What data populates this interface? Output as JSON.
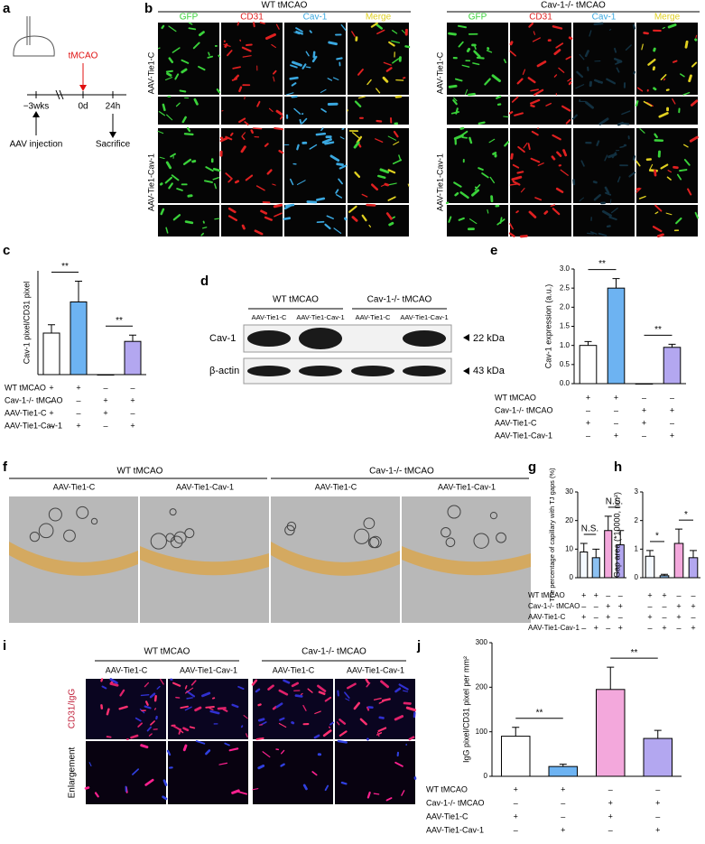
{
  "panel_labels": [
    "a",
    "b",
    "c",
    "d",
    "e",
    "f",
    "g",
    "h",
    "i",
    "j"
  ],
  "panel_a": {
    "treatment": "tMCAO",
    "timepoints": [
      "−3wks",
      "0d",
      "24h"
    ],
    "events": [
      "AAV injection",
      "Sacrifice"
    ]
  },
  "panel_b": {
    "groups": [
      "WT tMCAO",
      "Cav-1-/- tMCAO"
    ],
    "channels": [
      "GFP",
      "CD31",
      "Cav-1",
      "Merge"
    ],
    "rows": [
      "AAV-Tie1-C",
      "AAV-Tie1-Cav-1"
    ]
  },
  "panel_d": {
    "groups": [
      "WT tMCAO",
      "Cav-1-/- tMCAO"
    ],
    "lanes": [
      "AAV-Tie1-C",
      "AAV-Tie1-Cav-1"
    ],
    "bands": [
      {
        "name": "Cav-1",
        "size": "22 kDa"
      },
      {
        "name": "β-actin",
        "size": "43 kDa"
      }
    ]
  },
  "panel_f": {
    "groups": [
      "WT tMCAO",
      "Cav-1-/- tMCAO"
    ],
    "lanes": [
      "AAV-Tie1-C",
      "AAV-Tie1-Cav-1"
    ]
  },
  "panel_i": {
    "groups": [
      "WT tMCAO",
      "Cav-1-/- tMCAO"
    ],
    "lanes": [
      "AAV-Tie1-C",
      "AAV-Tie1-Cav-1"
    ],
    "stain": "CD31/IgG",
    "row": "Enlargement"
  },
  "chart_data": [
    {
      "type": "bar",
      "ylabel": "Cav-1 pixel/CD31 pixel",
      "values": [
        1.0,
        1.75,
        0.0,
        0.8
      ],
      "errors": [
        0.2,
        0.5,
        0.0,
        0.15
      ],
      "colors": [
        "#ffffff",
        "#6db3f2",
        "#ffffff",
        "#b3a7f0"
      ],
      "ylim": [
        0,
        2.5
      ],
      "significance": [
        "**",
        "**"
      ],
      "conditions": [
        {
          "label": "WT tMCAO",
          "signs": [
            "+",
            "+",
            "–",
            "–"
          ]
        },
        {
          "label": "Cav-1-/- tMCAO",
          "signs": [
            "–",
            "–",
            "+",
            "+"
          ]
        },
        {
          "label": "AAV-Tie1-C",
          "signs": [
            "+",
            "–",
            "+",
            "–"
          ]
        },
        {
          "label": "AAV-Tie1-Cav-1",
          "signs": [
            "–",
            "+",
            "–",
            "+"
          ]
        }
      ]
    },
    {
      "type": "bar",
      "ylabel": "Cav-1 expression (a.u.)",
      "values": [
        1.0,
        2.5,
        0.0,
        0.95
      ],
      "errors": [
        0.1,
        0.25,
        0.0,
        0.08
      ],
      "colors": [
        "#ffffff",
        "#6db3f2",
        "#ffffff",
        "#b3a7f0"
      ],
      "ylim": [
        0,
        3
      ],
      "yticks": [
        {
          "value": 0,
          "label": "0.0"
        },
        {
          "value": 0.5,
          "label": "0.5"
        },
        {
          "value": 1,
          "label": "1.0"
        },
        {
          "value": 1.5,
          "label": "1.5"
        },
        {
          "value": 2,
          "label": "2.0"
        },
        {
          "value": 2.5,
          "label": "2.5"
        },
        {
          "value": 3,
          "label": "3.0"
        }
      ],
      "significance": [
        "**",
        "**"
      ],
      "conditions": [
        {
          "label": "WT tMCAO",
          "signs": [
            "+",
            "+",
            "–",
            "–"
          ]
        },
        {
          "label": "Cav-1-/- tMCAO",
          "signs": [
            "–",
            "–",
            "+",
            "+"
          ]
        },
        {
          "label": "AAV-Tie1-C",
          "signs": [
            "+",
            "–",
            "+",
            "–"
          ]
        },
        {
          "label": "AAV-Tie1-Cav-1",
          "signs": [
            "–",
            "+",
            "–",
            "+"
          ]
        }
      ]
    },
    {
      "type": "bar",
      "ylabel": "The percentage of capillary with TJ gaps (%)",
      "values": [
        9,
        7,
        16.5,
        11.5
      ],
      "errors": [
        3,
        3,
        5,
        5
      ],
      "colors": [
        "#f4f9ff",
        "#8cc1f2",
        "#f3a8dc",
        "#b3a7f0"
      ],
      "ylim": [
        0,
        30
      ],
      "yticks": [
        0,
        10,
        20,
        30
      ],
      "significance": [
        "N.S.",
        "N.S."
      ],
      "conditions": [
        {
          "label": "WT tMCAO",
          "signs": [
            "+",
            "+",
            "–",
            "–"
          ]
        },
        {
          "label": "Cav-1-/- tMCAO",
          "signs": [
            "–",
            "–",
            "+",
            "+"
          ]
        },
        {
          "label": "AAV-Tie1-C",
          "signs": [
            "+",
            "–",
            "+",
            "–"
          ]
        },
        {
          "label": "AAV-Tie1-Cav-1",
          "signs": [
            "–",
            "+",
            "–",
            "+"
          ]
        }
      ]
    },
    {
      "type": "bar",
      "ylabel": "Gap area (*10000, nm²)",
      "values": [
        0.75,
        0.07,
        1.2,
        0.7
      ],
      "errors": [
        0.2,
        0.05,
        0.5,
        0.25
      ],
      "colors": [
        "#f4f9ff",
        "#8cc1f2",
        "#f3a8dc",
        "#b3a7f0"
      ],
      "ylim": [
        0,
        3
      ],
      "yticks": [
        0,
        1,
        2,
        3
      ],
      "significance": [
        "*",
        "*"
      ],
      "conditions": [
        {
          "signs": [
            "+",
            "+",
            "–",
            "–"
          ]
        },
        {
          "signs": [
            "–",
            "–",
            "+",
            "+"
          ]
        },
        {
          "signs": [
            "+",
            "–",
            "+",
            "–"
          ]
        },
        {
          "signs": [
            "–",
            "+",
            "–",
            "+"
          ]
        }
      ]
    },
    {
      "type": "bar",
      "ylabel": "IgG pixel/CD31 pixel per mm²",
      "values": [
        90,
        22,
        195,
        85
      ],
      "errors": [
        20,
        5,
        50,
        18
      ],
      "colors": [
        "#ffffff",
        "#6db3f2",
        "#f3a8dc",
        "#b3a7f0"
      ],
      "ylim": [
        0,
        300
      ],
      "yticks": [
        0,
        100,
        200,
        300
      ],
      "significance": [
        "**",
        "**"
      ],
      "conditions": [
        {
          "label": "WT tMCAO",
          "signs": [
            "+",
            "+",
            "–",
            "–"
          ]
        },
        {
          "label": "Cav-1-/- tMCAO",
          "signs": [
            "–",
            "–",
            "+",
            "+"
          ]
        },
        {
          "label": "AAV-Tie1-C",
          "signs": [
            "+",
            "–",
            "+",
            "–"
          ]
        },
        {
          "label": "AAV-Tie1-Cav-1",
          "signs": [
            "–",
            "+",
            "–",
            "+"
          ]
        }
      ]
    }
  ]
}
